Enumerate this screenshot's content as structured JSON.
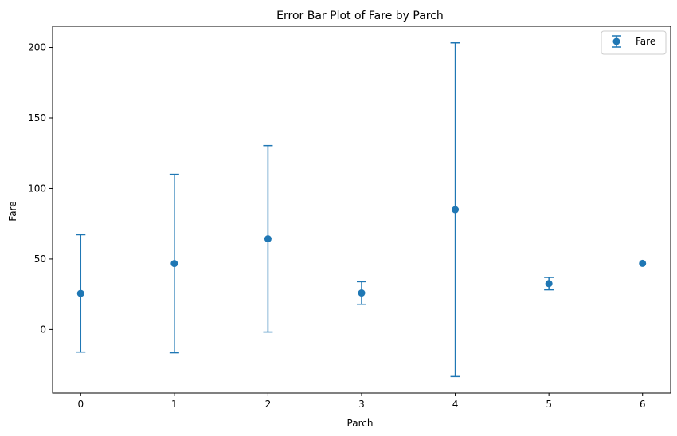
{
  "chart_data": {
    "type": "scatter",
    "title": "Error Bar Plot of Fare by Parch",
    "xlabel": "Parch",
    "ylabel": "Fare",
    "xlim": [
      -0.3,
      6.3
    ],
    "ylim": [
      -45,
      215
    ],
    "xticks": [
      0,
      1,
      2,
      3,
      4,
      5,
      6
    ],
    "yticks": [
      0,
      50,
      100,
      150,
      200
    ],
    "grid": false,
    "legend_position": "top-right",
    "series": [
      {
        "name": "Fare",
        "color": "#1f77b4",
        "marker": "circle",
        "x": [
          0,
          1,
          2,
          3,
          4,
          5,
          6
        ],
        "y": [
          25.6,
          46.8,
          64.3,
          25.9,
          84.97,
          32.55,
          46.9
        ],
        "yerr": [
          41.6,
          63.3,
          66.1,
          8.0,
          118.3,
          4.4,
          0
        ]
      }
    ]
  }
}
